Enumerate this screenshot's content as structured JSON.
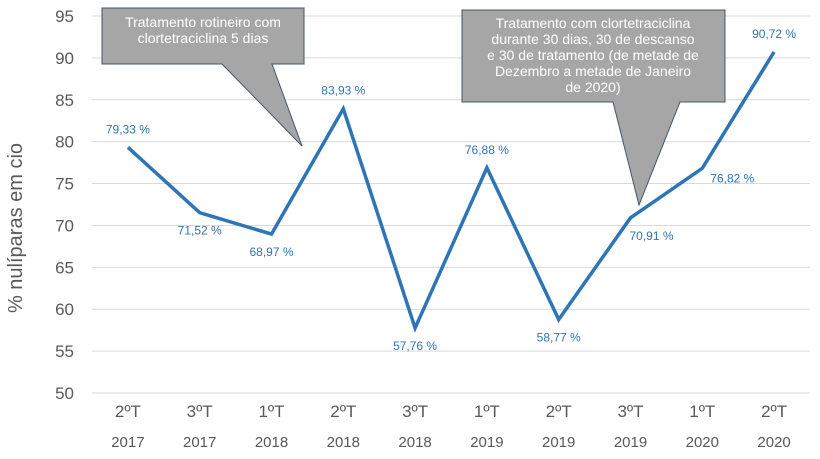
{
  "chart_data": {
    "type": "line",
    "ylabel": "%  nulíparas em cio",
    "ylim": [
      50,
      95
    ],
    "yticks": [
      50,
      55,
      60,
      65,
      70,
      75,
      80,
      85,
      90,
      95
    ],
    "grid": true,
    "categories": [
      {
        "quarter": "2ºT",
        "year": "2017"
      },
      {
        "quarter": "3ºT",
        "year": "2017"
      },
      {
        "quarter": "1ºT",
        "year": "2018"
      },
      {
        "quarter": "2ºT",
        "year": "2018"
      },
      {
        "quarter": "3ºT",
        "year": "2018"
      },
      {
        "quarter": "1ºT",
        "year": "2019"
      },
      {
        "quarter": "2ºT",
        "year": "2019"
      },
      {
        "quarter": "3ºT",
        "year": "2019"
      },
      {
        "quarter": "1ºT",
        "year": "2020"
      },
      {
        "quarter": "2ºT",
        "year": "2020"
      }
    ],
    "values": [
      79.33,
      71.52,
      68.97,
      83.93,
      57.76,
      76.88,
      58.77,
      70.91,
      76.82,
      90.72
    ],
    "data_labels": [
      "79,33 %",
      "71,52 %",
      "68,97 %",
      "83,93 %",
      "57,76 %",
      "76,88 %",
      "58,77 %",
      "70,91 %",
      "76,82 %",
      "90,72 %"
    ],
    "line_color": "#2e75b6",
    "annotations": [
      {
        "lines": [
          "Tratamento rotineiro com",
          "clortetraciclina 5 dias"
        ],
        "points_to": "between 1ºT 2018 and 2ºT 2018"
      },
      {
        "lines": [
          "Tratamento com clortetraciclina",
          "durante 30 dias, 30 de descanso",
          "e 30 de tratamento (de metade de",
          "Dezembro a metade de Janeiro",
          "de 2020)"
        ],
        "points_to": "3ºT 2019"
      }
    ],
    "callout_color": "#a6a6a6"
  }
}
